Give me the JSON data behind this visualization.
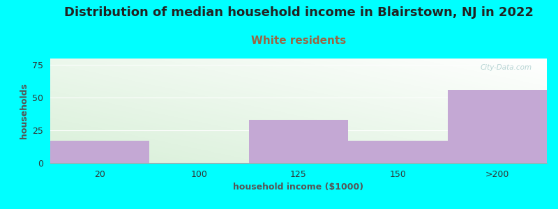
{
  "title": "Distribution of median household income in Blairstown, NJ in 2022",
  "subtitle": "White residents",
  "xlabel": "household income ($1000)",
  "ylabel": "households",
  "background_color": "#00FFFF",
  "bar_color": "#c4a8d4",
  "bar_edge_color": "#b090c0",
  "ylim": [
    0,
    80
  ],
  "yticks": [
    0,
    25,
    50,
    75
  ],
  "watermark": "City-Data.com",
  "title_fontsize": 13,
  "subtitle_fontsize": 11,
  "subtitle_color": "#996644",
  "axis_label_fontsize": 9,
  "title_color": "#222222"
}
